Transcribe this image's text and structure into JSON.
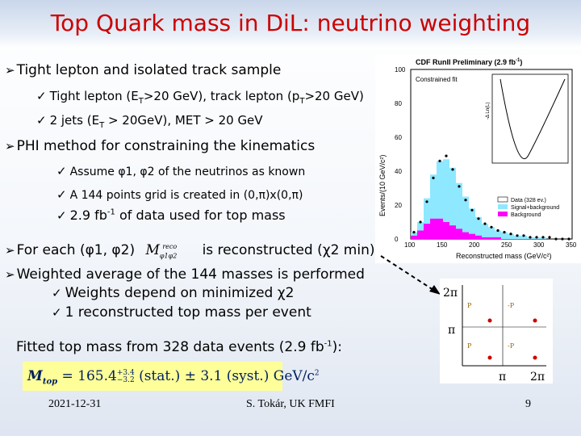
{
  "title": "Top Quark mass in DiL: neutrino weighting",
  "bullets": {
    "b1": "Tight lepton and isolated track sample",
    "b1a_pre": "Tight lepton (E",
    "b1a_sub": "T",
    "b1a_mid": ">20 GeV), track lepton (p",
    "b1a_sub2": "T",
    "b1a_post": ">20 GeV)",
    "b1b_pre": "2 jets (E",
    "b1b_sub": "T",
    "b1b_post": " > 20GeV), MET > 20 GeV",
    "b2": "PHI method for constraining the kinematics",
    "b2a": "Assume φ1, φ2 of the neutrinos as known",
    "b2b": "A 144 points grid is created in (0,π)x(0,π)",
    "b2c_pre": "2.9 fb",
    "b2c_sup": "-1",
    "b2c_post": " of data used for top mass",
    "b3_pre": "For each (φ1, φ2)",
    "b3_post": "is reconstructed (χ2 min)",
    "b4": "Weighted average of the 144 masses is performed",
    "b4a": "Weights  depend on minimized χ2",
    "b4b": "1 reconstructed top mass per event",
    "fit_pre": "Fitted top mass from 328 data events (2.9 fb",
    "fit_sup": "-1",
    "fit_post": "):"
  },
  "formula": {
    "lhs": "M",
    "sub": "top",
    "eq": " = 165.4",
    "sup_err": "+3.4",
    "sub_err": "−3.2",
    "rest": " (stat.)  ± 3.1 (syst.) GeV/c",
    "sq": "2"
  },
  "plot": {
    "header": "CDF RunII Preliminary (2.9 fb",
    "header_sup": "-1",
    "header_post": ")",
    "subtitle": "Constrained fit",
    "ylabel": "Events/(10 GeV/c²)",
    "xlabel": "Reconstructed mass (GeV/c²)",
    "inset_ylabel": "-Δ Ln(L)",
    "legend": [
      "Data (328 ev.)",
      "Signal+background",
      "Background"
    ],
    "yticks": [
      "100",
      "80",
      "60",
      "40",
      "20",
      "0"
    ],
    "xticks": [
      "100",
      "150",
      "200",
      "250",
      "300",
      "350"
    ]
  },
  "chart_data": {
    "type": "bar",
    "categories": [
      100,
      110,
      120,
      130,
      140,
      150,
      160,
      170,
      180,
      190,
      200,
      210,
      220,
      230,
      240,
      250,
      260,
      270,
      280,
      290,
      300,
      310,
      320,
      330,
      340
    ],
    "series": [
      {
        "name": "Data (328 ev.)",
        "values": [
          4,
          10,
          22,
          36,
          46,
          49,
          41,
          31,
          23,
          17,
          12,
          9,
          7,
          5,
          4,
          3,
          2,
          2,
          1,
          1,
          1,
          1,
          0,
          0,
          0
        ]
      },
      {
        "name": "Signal+background",
        "values": [
          4,
          10,
          24,
          38,
          46,
          47,
          42,
          33,
          25,
          18,
          13,
          9,
          7,
          5,
          4,
          3,
          2,
          2,
          1,
          1,
          1,
          0,
          0,
          0,
          0
        ]
      },
      {
        "name": "Background",
        "values": [
          2,
          5,
          9,
          12,
          12,
          10,
          8,
          6,
          4,
          3,
          2,
          1,
          1,
          1,
          0,
          0,
          0,
          0,
          0,
          0,
          0,
          0,
          0,
          0,
          0
        ]
      }
    ],
    "xlabel": "Reconstructed mass (GeV/c²)",
    "ylabel": "Events/(10 GeV/c²)",
    "xlim": [
      100,
      350
    ],
    "ylim": [
      0,
      100
    ]
  },
  "grid": {
    "ylab_top": "2π",
    "ylab_mid": "π",
    "xlab_mid": "π",
    "xlab_right": "2π",
    "q_tl": "P",
    "q_tr": "-P",
    "q_bl": "P",
    "q_br": "-P"
  },
  "footer": {
    "date": "2021-12-31",
    "author": "S. Tokár, UK FMFI",
    "page": "9"
  },
  "colors": {
    "title": "#cc0000",
    "signal": "#8ee8ff",
    "background": "#ff00ff"
  }
}
